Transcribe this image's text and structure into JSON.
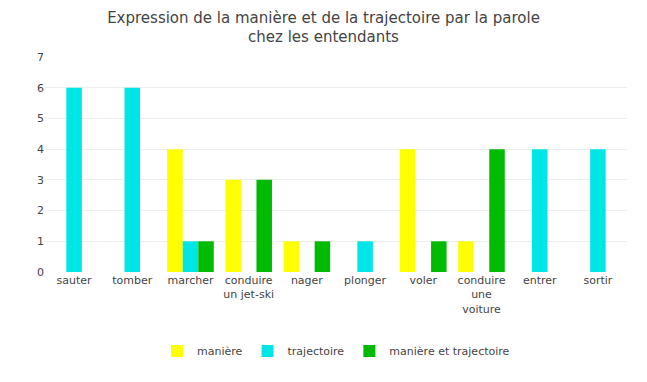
{
  "chart_data": {
    "type": "bar",
    "title": "Expression de la manière et de la trajectoire par la parole\nchez les entendants",
    "categories": [
      "sauter",
      "tomber",
      "marcher",
      "conduire\nun jet-ski",
      "nager",
      "plonger",
      "voler",
      "conduire\nune\nvoiture",
      "entrer",
      "sortir"
    ],
    "series": [
      {
        "name": "manière",
        "color": "#ffff00",
        "values": [
          0,
          0,
          4,
          3,
          1,
          0,
          4,
          1,
          0,
          0
        ]
      },
      {
        "name": "trajectoire",
        "color": "#00e5e5",
        "values": [
          6,
          6,
          1,
          0,
          0,
          1,
          0,
          0,
          4,
          4
        ]
      },
      {
        "name": "manière et trajectoire",
        "color": "#00bb00",
        "values": [
          0,
          0,
          1,
          3,
          1,
          0,
          1,
          4,
          0,
          0
        ]
      }
    ],
    "ylim": [
      0,
      7
    ],
    "yticks": [
      0,
      1,
      2,
      3,
      4,
      5,
      6,
      7
    ],
    "grid": true,
    "legend": "bottom"
  }
}
